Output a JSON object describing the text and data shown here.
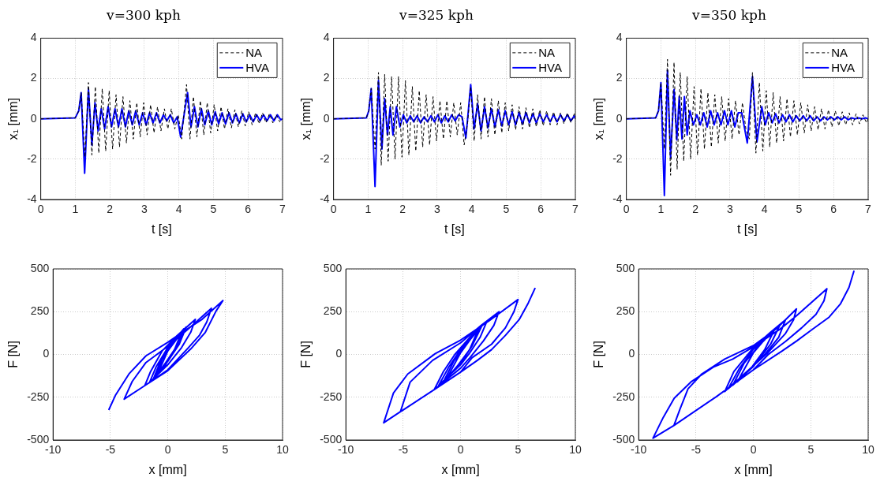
{
  "chart_data": [
    {
      "type": "line",
      "title": "v=300 kph",
      "xlabel": "t [s]",
      "ylabel": "x₁ [mm]",
      "xlim": [
        0,
        7
      ],
      "ylim": [
        -4,
        4
      ],
      "xticks": [
        0,
        1,
        2,
        3,
        4,
        5,
        6,
        7
      ],
      "yticks": [
        -4,
        -2,
        0,
        2,
        4
      ],
      "grid": true,
      "legend": "top right",
      "series": [
        {
          "name": "NA",
          "color": "#000000",
          "line_style": "dashed",
          "x": [
            0,
            1.0,
            1.1,
            1.17,
            1.28,
            1.38,
            1.48,
            1.58,
            1.68,
            1.78,
            1.88,
            1.98,
            2.08,
            2.18,
            2.28,
            2.38,
            2.48,
            2.58,
            2.68,
            2.78,
            2.88,
            2.98,
            3.08,
            3.18,
            3.28,
            3.38,
            3.48,
            3.58,
            3.68,
            3.78,
            3.88,
            3.98,
            4.08,
            4.22,
            4.32,
            4.42,
            4.52,
            4.62,
            4.72,
            4.82,
            4.92,
            5.02,
            5.12,
            5.22,
            5.32,
            5.42,
            5.52,
            5.62,
            5.72,
            5.82,
            5.92,
            6.02,
            6.12,
            6.22,
            6.32,
            6.42,
            6.52,
            6.62,
            6.72,
            6.82,
            6.92,
            7
          ],
          "values": [
            0,
            0.05,
            0.4,
            1.3,
            -1.9,
            1.8,
            -1.8,
            1.6,
            -1.7,
            1.5,
            -1.6,
            1.4,
            -1.5,
            1.2,
            -1.4,
            1.1,
            -1.2,
            0.9,
            -1.0,
            0.8,
            -0.9,
            0.8,
            -0.8,
            0.7,
            -0.7,
            0.6,
            -0.6,
            0.5,
            -0.5,
            0.5,
            -0.5,
            0.2,
            -1.0,
            1.7,
            -1.0,
            1.1,
            -0.9,
            0.9,
            -0.8,
            0.8,
            -0.7,
            0.7,
            -0.6,
            0.6,
            -0.5,
            0.5,
            -0.45,
            0.45,
            -0.4,
            0.4,
            -0.35,
            0.35,
            -0.3,
            0.3,
            -0.25,
            0.3,
            -0.2,
            0.25,
            -0.2,
            0.2,
            -0.15,
            0
          ]
        },
        {
          "name": "HVA",
          "color": "#0000ff",
          "line_style": "solid",
          "x": [
            0,
            1.0,
            1.1,
            1.17,
            1.27,
            1.38,
            1.48,
            1.57,
            1.66,
            1.75,
            1.85,
            1.95,
            2.05,
            2.15,
            2.25,
            2.35,
            2.45,
            2.55,
            2.65,
            2.75,
            2.85,
            2.95,
            3.05,
            3.15,
            3.25,
            3.35,
            3.45,
            3.55,
            3.65,
            3.75,
            3.85,
            3.95,
            4.05,
            4.25,
            4.35,
            4.45,
            4.55,
            4.65,
            4.75,
            4.85,
            4.95,
            5.05,
            5.15,
            5.25,
            5.35,
            5.45,
            5.55,
            5.65,
            5.75,
            5.85,
            5.95,
            6.05,
            6.15,
            6.25,
            6.35,
            6.45,
            6.55,
            6.65,
            6.75,
            6.85,
            6.95,
            7
          ],
          "values": [
            0,
            0.05,
            0.4,
            1.3,
            -2.7,
            1.5,
            -1.3,
            0.8,
            -0.6,
            0.5,
            -0.5,
            0.6,
            -0.4,
            0.5,
            -0.4,
            0.5,
            -0.4,
            0.4,
            -0.3,
            0.4,
            -0.3,
            0.3,
            -0.3,
            0.3,
            -0.2,
            0.3,
            -0.2,
            0.2,
            -0.1,
            0.2,
            -0.2,
            0.1,
            -0.9,
            1.3,
            -0.4,
            0.6,
            -0.4,
            0.5,
            -0.3,
            0.4,
            -0.3,
            0.35,
            -0.25,
            0.3,
            -0.25,
            0.3,
            -0.2,
            0.25,
            -0.2,
            0.25,
            -0.15,
            0.2,
            -0.15,
            0.2,
            -0.1,
            0.2,
            -0.1,
            0.2,
            -0.1,
            0.2,
            -0.05,
            0
          ]
        }
      ]
    },
    {
      "type": "line",
      "title": "v=325 kph",
      "xlabel": "t [s]",
      "ylabel": "x₁ [mm]",
      "xlim": [
        0,
        7
      ],
      "ylim": [
        -4,
        4
      ],
      "xticks": [
        0,
        1,
        2,
        3,
        4,
        5,
        6,
        7
      ],
      "yticks": [
        -4,
        -2,
        0,
        2,
        4
      ],
      "grid": true,
      "legend": "top right",
      "series": [
        {
          "name": "NA",
          "color": "#000000",
          "line_style": "dashed",
          "x": [
            0,
            0.95,
            1.02,
            1.09,
            1.2,
            1.3,
            1.38,
            1.48,
            1.58,
            1.68,
            1.78,
            1.88,
            1.98,
            2.08,
            2.18,
            2.28,
            2.38,
            2.48,
            2.58,
            2.68,
            2.78,
            2.88,
            2.98,
            3.08,
            3.18,
            3.28,
            3.38,
            3.48,
            3.58,
            3.68,
            3.78,
            3.88,
            3.97,
            4.07,
            4.17,
            4.27,
            4.37,
            4.47,
            4.57,
            4.67,
            4.77,
            4.87,
            4.97,
            5.07,
            5.17,
            5.27,
            5.37,
            5.47,
            5.57,
            5.67,
            5.77,
            5.87,
            5.97,
            6.07,
            6.17,
            6.27,
            6.37,
            6.47,
            6.57,
            6.67,
            6.77,
            6.87,
            6.97,
            7
          ],
          "values": [
            0,
            0.05,
            0.4,
            1.5,
            -1.5,
            2.3,
            -2.3,
            2.2,
            -2.1,
            2.1,
            -2.0,
            2.1,
            -1.9,
            1.9,
            -1.8,
            1.6,
            -1.6,
            1.4,
            -1.4,
            1.2,
            -1.3,
            1.1,
            -1.1,
            0.9,
            -1.0,
            0.9,
            -0.9,
            0.8,
            -0.8,
            0.8,
            -1.3,
            -0.2,
            1.6,
            -1.1,
            1.2,
            -1.0,
            1.1,
            -0.9,
            1.0,
            -0.8,
            0.9,
            -0.7,
            0.8,
            -0.6,
            0.7,
            -0.55,
            0.6,
            -0.5,
            0.55,
            -0.45,
            0.5,
            -0.4,
            0.45,
            -0.35,
            0.4,
            -0.3,
            0.35,
            -0.3,
            0.3,
            -0.25,
            0.3,
            -0.2,
            0.25,
            0
          ]
        },
        {
          "name": "HVA",
          "color": "#0000ff",
          "line_style": "solid",
          "x": [
            0,
            0.95,
            1.02,
            1.09,
            1.2,
            1.3,
            1.4,
            1.48,
            1.56,
            1.64,
            1.72,
            1.82,
            1.92,
            2.02,
            2.12,
            2.22,
            2.32,
            2.42,
            2.52,
            2.62,
            2.72,
            2.82,
            2.92,
            3.02,
            3.12,
            3.22,
            3.32,
            3.42,
            3.52,
            3.62,
            3.72,
            3.83,
            3.97,
            4.07,
            4.17,
            4.27,
            4.37,
            4.47,
            4.57,
            4.67,
            4.77,
            4.87,
            4.97,
            5.07,
            5.17,
            5.27,
            5.37,
            5.47,
            5.57,
            5.67,
            5.77,
            5.87,
            5.97,
            6.07,
            6.17,
            6.27,
            6.37,
            6.47,
            6.57,
            6.67,
            6.77,
            6.87,
            6.97,
            7
          ],
          "values": [
            0,
            0.05,
            0.4,
            1.5,
            -3.35,
            1.9,
            -1.5,
            1.0,
            -0.8,
            0.6,
            -0.8,
            0.6,
            -0.4,
            0.2,
            -0.2,
            0.15,
            -0.15,
            0.15,
            -0.2,
            0.1,
            -0.15,
            0.15,
            -0.15,
            0.2,
            -0.2,
            0.15,
            -0.15,
            0.2,
            -0.1,
            0.2,
            0.1,
            -0.95,
            1.7,
            -0.5,
            0.75,
            -0.6,
            0.6,
            -0.45,
            0.5,
            -0.4,
            0.45,
            -0.35,
            0.4,
            -0.3,
            0.35,
            -0.3,
            0.3,
            -0.25,
            0.3,
            -0.2,
            0.25,
            -0.2,
            0.25,
            -0.15,
            0.2,
            -0.15,
            0.2,
            -0.15,
            0.2,
            -0.1,
            0.2,
            -0.1,
            0.15,
            0
          ]
        }
      ]
    },
    {
      "type": "line",
      "title": "v=350 kph",
      "xlabel": "t [s]",
      "ylabel": "x₁ [mm]",
      "xlim": [
        0,
        7
      ],
      "ylim": [
        -4,
        4
      ],
      "xticks": [
        0,
        1,
        2,
        3,
        4,
        5,
        6,
        7
      ],
      "yticks": [
        -4,
        -2,
        0,
        2,
        4
      ],
      "grid": true,
      "legend": "top right",
      "series": [
        {
          "name": "NA",
          "color": "#000000",
          "line_style": "dashed",
          "x": [
            0,
            0.85,
            0.93,
            1.0,
            1.1,
            1.19,
            1.28,
            1.38,
            1.47,
            1.56,
            1.66,
            1.76,
            1.86,
            1.96,
            2.06,
            2.16,
            2.26,
            2.36,
            2.46,
            2.56,
            2.66,
            2.76,
            2.86,
            2.96,
            3.06,
            3.16,
            3.26,
            3.36,
            3.46,
            3.56,
            3.65,
            3.75,
            3.85,
            3.95,
            4.05,
            4.15,
            4.25,
            4.35,
            4.45,
            4.55,
            4.65,
            4.75,
            4.85,
            4.95,
            5.05,
            5.15,
            5.25,
            5.35,
            5.45,
            5.55,
            5.65,
            5.75,
            5.85,
            5.95,
            6.05,
            6.15,
            6.25,
            6.35,
            6.45,
            6.55,
            6.65,
            6.75,
            6.85,
            6.95,
            7
          ],
          "values": [
            0,
            0.05,
            0.4,
            1.8,
            -1.5,
            2.95,
            -2.8,
            2.8,
            -2.5,
            2.3,
            -2.1,
            2.1,
            -2.0,
            1.6,
            -1.8,
            1.5,
            -1.5,
            1.3,
            -1.4,
            1.2,
            -1.2,
            1.1,
            -1.1,
            1.0,
            -1.0,
            0.9,
            -0.8,
            0.8,
            -0.5,
            -1.0,
            2.3,
            -1.7,
            1.8,
            -1.6,
            1.4,
            -1.4,
            1.3,
            -1.2,
            1.1,
            -1.1,
            1.0,
            -0.9,
            0.9,
            -0.8,
            0.8,
            -0.7,
            0.7,
            -0.6,
            0.6,
            -0.55,
            0.5,
            -0.5,
            0.45,
            -0.4,
            0.4,
            -0.35,
            0.35,
            -0.3,
            0.3,
            -0.3,
            0.25,
            -0.25,
            0.2,
            -0.2,
            0
          ]
        },
        {
          "name": "HVA",
          "color": "#0000ff",
          "line_style": "solid",
          "x": [
            0,
            0.85,
            0.93,
            1.0,
            1.1,
            1.19,
            1.28,
            1.38,
            1.46,
            1.53,
            1.61,
            1.68,
            1.76,
            1.84,
            1.94,
            2.04,
            2.14,
            2.24,
            2.34,
            2.44,
            2.54,
            2.64,
            2.74,
            2.84,
            2.94,
            3.04,
            3.14,
            3.24,
            3.34,
            3.5,
            3.65,
            3.78,
            3.92,
            4.02,
            4.12,
            4.22,
            4.32,
            4.42,
            4.52,
            4.62,
            4.72,
            4.82,
            4.92,
            5.02,
            5.12,
            5.22,
            5.32,
            5.42,
            5.52,
            5.62,
            5.72,
            5.82,
            5.92,
            6.02,
            6.12,
            6.22,
            6.32,
            6.42,
            6.52,
            6.62,
            6.72,
            6.82,
            6.92,
            7
          ],
          "values": [
            0,
            0.05,
            0.4,
            1.8,
            -3.8,
            2.4,
            -1.95,
            1.45,
            -1.05,
            1.1,
            -1.0,
            1.1,
            -0.8,
            0.4,
            -0.3,
            0.2,
            -0.3,
            0.3,
            -0.4,
            0.4,
            -0.3,
            0.3,
            -0.3,
            0.4,
            -0.3,
            0.4,
            -0.4,
            0.3,
            0.3,
            -1.2,
            2.1,
            -1.15,
            0.6,
            -0.3,
            0.3,
            -0.2,
            0.25,
            -0.2,
            0.2,
            -0.15,
            0.2,
            -0.15,
            0.15,
            -0.1,
            0.15,
            -0.1,
            0.15,
            -0.1,
            0.1,
            -0.1,
            0.1,
            -0.05,
            0.1,
            -0.05,
            0.1,
            -0.05,
            0.1,
            -0.05,
            0.05,
            0,
            0.05,
            0,
            0.05,
            0
          ]
        }
      ]
    },
    {
      "type": "line",
      "xlabel": "x [mm]",
      "ylabel": "F [N]",
      "xlim": [
        -10,
        10
      ],
      "ylim": [
        -500,
        500
      ],
      "xticks": [
        -10,
        -5,
        0,
        5,
        10
      ],
      "yticks": [
        -500,
        -250,
        0,
        250,
        500
      ],
      "grid": true,
      "series": [
        {
          "color": "#0000ff",
          "line_style": "solid",
          "x": [
            -5.15,
            -4.55,
            -3.35,
            -1.9,
            0,
            1.55,
            3.0,
            4.8,
            4.2,
            3.25,
            2.0,
            0,
            -2.0,
            -3.8,
            -3.1,
            -1.9,
            0,
            1.8,
            3.8,
            3.4,
            2.75,
            1.8,
            0,
            -2.0,
            -1.5,
            -0.5,
            0.8,
            2.4,
            2.0,
            1.2,
            0,
            -1.6,
            -1.0,
            0,
            1.6,
            1.0,
            0,
            -1.3,
            -0.7,
            0.3,
            1.4,
            0.8,
            -0.2,
            -1.1,
            -0.5,
            0.5,
            1.2,
            0.6,
            -0.2,
            -0.9,
            0,
            1.0
          ],
          "values": [
            -325,
            -237,
            -111,
            -8,
            71,
            142,
            206,
            315,
            253,
            127,
            32,
            -95,
            -182,
            -261,
            -158,
            -47,
            47,
            150,
            270,
            190,
            111,
            40,
            -90,
            -182,
            -100,
            20,
            110,
            205,
            130,
            40,
            -60,
            -165,
            -70,
            40,
            160,
            60,
            -40,
            -150,
            -50,
            60,
            150,
            50,
            -50,
            -130,
            -30,
            70,
            130,
            30,
            -60,
            -115,
            20,
            110
          ]
        }
      ]
    },
    {
      "type": "line",
      "xlabel": "x [mm]",
      "ylabel": "F [N]",
      "xlim": [
        -10,
        10
      ],
      "ylim": [
        -500,
        500
      ],
      "xticks": [
        -10,
        -5,
        0,
        5,
        10
      ],
      "yticks": [
        -500,
        -250,
        0,
        250,
        500
      ],
      "grid": true,
      "series": [
        {
          "color": "#0000ff",
          "line_style": "solid",
          "x": [
            6.5,
            5.9,
            5.1,
            3.9,
            2.7,
            1.45,
            0,
            -2.3,
            -5.25,
            -6.7,
            -5.85,
            -4.6,
            -2.2,
            0,
            2.45,
            5.0,
            4.65,
            3.9,
            2.7,
            1.0,
            0,
            -2.3,
            -5.25,
            -4.4,
            -2.45,
            0,
            1.8,
            3.35,
            2.9,
            2.0,
            0.8,
            0,
            -2.3,
            -1.5,
            -0.5,
            0.8,
            2.3,
            1.7,
            0.8,
            0,
            -1.9,
            -1.0,
            0,
            1.8,
            1.0,
            0,
            -1.5,
            -0.6,
            0.5,
            1.5,
            0.8,
            -0.2,
            -1.2,
            0,
            1.2
          ],
          "values": [
            389,
            301,
            203,
            111,
            28,
            -35,
            -103,
            -206,
            -335,
            -399,
            -225,
            -114,
            5,
            84,
            195,
            321,
            250,
            155,
            60,
            -19,
            -103,
            -206,
            -335,
            -162,
            -35,
            68,
            170,
            250,
            170,
            80,
            -20,
            -80,
            -206,
            -100,
            0,
            100,
            195,
            100,
            10,
            -60,
            -180,
            -70,
            30,
            160,
            50,
            -50,
            -160,
            -40,
            60,
            140,
            30,
            -60,
            -140,
            10,
            120
          ]
        }
      ]
    },
    {
      "type": "line",
      "xlabel": "x [mm]",
      "ylabel": "F [N]",
      "xlim": [
        -10,
        10
      ],
      "ylim": [
        -500,
        500
      ],
      "xticks": [
        -10,
        -5,
        0,
        5,
        10
      ],
      "yticks": [
        -500,
        -250,
        0,
        250,
        500
      ],
      "grid": true,
      "series": [
        {
          "color": "#0000ff",
          "line_style": "solid",
          "x": [
            8.77,
            8.33,
            7.6,
            6.6,
            5.2,
            3.8,
            2.5,
            0,
            -3.26,
            -6.93,
            -8.75,
            -7.85,
            -6.9,
            -5.45,
            -3.5,
            -1.8,
            0,
            2.3,
            3.75,
            6.4,
            6.15,
            5.45,
            4.2,
            2.8,
            1.3,
            0,
            -3.26,
            -6.93,
            -6.4,
            -5.7,
            -4.5,
            -2.5,
            0,
            2.0,
            3.75,
            3.5,
            2.8,
            1.3,
            0,
            -2.5,
            -1.7,
            0,
            1.5,
            2.8,
            2.2,
            1.0,
            -0.5,
            -2.2,
            -1.2,
            0,
            2.3,
            1.5,
            0,
            -1.8,
            -0.8,
            0.6,
            1.8,
            1.0,
            -0.2,
            -1.4,
            0,
            1.4
          ],
          "values": [
            490,
            392,
            297,
            218,
            150,
            80,
            20,
            -90,
            -248,
            -415,
            -489,
            -367,
            -256,
            -161,
            -74,
            -27,
            44,
            147,
            226,
            384,
            313,
            234,
            155,
            76,
            0,
            -90,
            -248,
            -415,
            -320,
            -201,
            -114,
            -27,
            52,
            150,
            266,
            203,
            123,
            13,
            -66,
            -217,
            -100,
            40,
            130,
            203,
            100,
            0,
            -100,
            -200,
            -80,
            30,
            170,
            60,
            -70,
            -180,
            -50,
            60,
            140,
            30,
            -80,
            -160,
            10,
            120
          ]
        }
      ]
    }
  ]
}
